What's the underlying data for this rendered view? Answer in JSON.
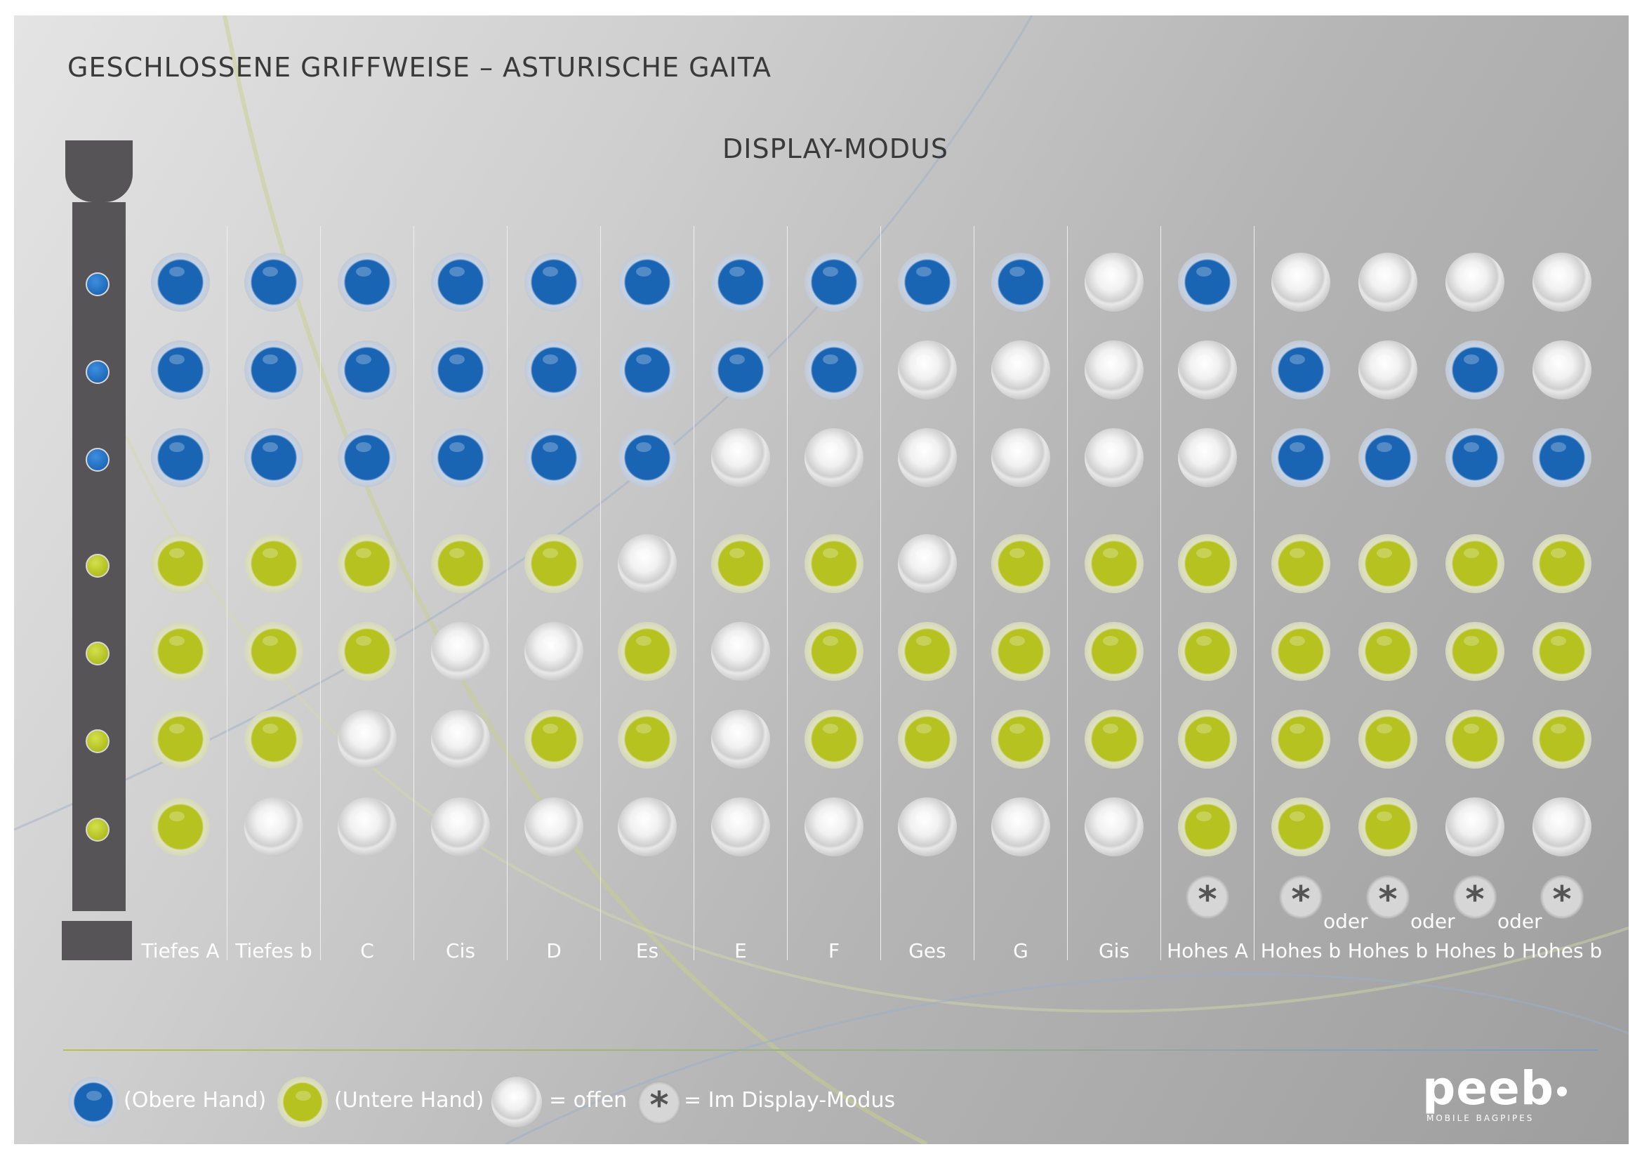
{
  "title": "GESCHLOSSENE GRIFFWEISE – ASTURISCHE GAITA",
  "subtitle": "DISPLAY-MODUS",
  "colors": {
    "upper_hand": "#1a64b4",
    "lower_hand": "#b6c21f",
    "open": "#f1f1f1",
    "panel": "#bdbdbd"
  },
  "pipe": {
    "holes": [
      "blue",
      "blue",
      "blue",
      "green",
      "green",
      "green",
      "green"
    ]
  },
  "chart_data": {
    "type": "table",
    "rows_meaning": "holes top to bottom: 3 upper hand, 4 lower hand",
    "columns": [
      {
        "note": "Tiefes A",
        "holes": [
          "blue",
          "blue",
          "blue",
          "green",
          "green",
          "green",
          "green"
        ],
        "display": false,
        "oder": false
      },
      {
        "note": "Tiefes b",
        "holes": [
          "blue",
          "blue",
          "blue",
          "green",
          "green",
          "green",
          "white"
        ],
        "display": false,
        "oder": false
      },
      {
        "note": "C",
        "holes": [
          "blue",
          "blue",
          "blue",
          "green",
          "green",
          "white",
          "white"
        ],
        "display": false,
        "oder": false
      },
      {
        "note": "Cis",
        "holes": [
          "blue",
          "blue",
          "blue",
          "green",
          "white",
          "white",
          "white"
        ],
        "display": false,
        "oder": false
      },
      {
        "note": "D",
        "holes": [
          "blue",
          "blue",
          "blue",
          "green",
          "white",
          "green",
          "white"
        ],
        "display": false,
        "oder": false
      },
      {
        "note": "Es",
        "holes": [
          "blue",
          "blue",
          "blue",
          "white",
          "green",
          "green",
          "white"
        ],
        "display": false,
        "oder": false
      },
      {
        "note": "E",
        "holes": [
          "blue",
          "blue",
          "white",
          "green",
          "white",
          "white",
          "white"
        ],
        "display": false,
        "oder": false
      },
      {
        "note": "F",
        "holes": [
          "blue",
          "blue",
          "white",
          "green",
          "green",
          "green",
          "white"
        ],
        "display": false,
        "oder": false
      },
      {
        "note": "Ges",
        "holes": [
          "blue",
          "white",
          "white",
          "white",
          "green",
          "green",
          "white"
        ],
        "display": false,
        "oder": false
      },
      {
        "note": "G",
        "holes": [
          "blue",
          "white",
          "white",
          "green",
          "green",
          "green",
          "white"
        ],
        "display": false,
        "oder": false
      },
      {
        "note": "Gis",
        "holes": [
          "white",
          "white",
          "white",
          "green",
          "green",
          "green",
          "white"
        ],
        "display": false,
        "oder": false
      },
      {
        "note": "Hohes A",
        "holes": [
          "blue",
          "white",
          "white",
          "green",
          "green",
          "green",
          "green"
        ],
        "display": true,
        "oder": false
      },
      {
        "note": "Hohes b",
        "holes": [
          "white",
          "blue",
          "blue",
          "green",
          "green",
          "green",
          "green"
        ],
        "display": true,
        "oder": true
      },
      {
        "note": "Hohes b",
        "holes": [
          "white",
          "white",
          "blue",
          "green",
          "green",
          "green",
          "green"
        ],
        "display": true,
        "oder": true
      },
      {
        "note": "Hohes b",
        "holes": [
          "white",
          "blue",
          "blue",
          "green",
          "green",
          "green",
          "white"
        ],
        "display": true,
        "oder": true
      },
      {
        "note": "Hohes b",
        "holes": [
          "white",
          "white",
          "blue",
          "green",
          "green",
          "green",
          "white"
        ],
        "display": true,
        "oder": false
      }
    ]
  },
  "star_symbol": "*",
  "oder_label": "oder",
  "legend": {
    "upper": "(Obere Hand)",
    "lower": "(Untere Hand)",
    "open": "= offen",
    "display": "= Im Display-Modus"
  },
  "brand": {
    "name": "peeb",
    "tagline": "MOBILE BAGPIPES"
  }
}
